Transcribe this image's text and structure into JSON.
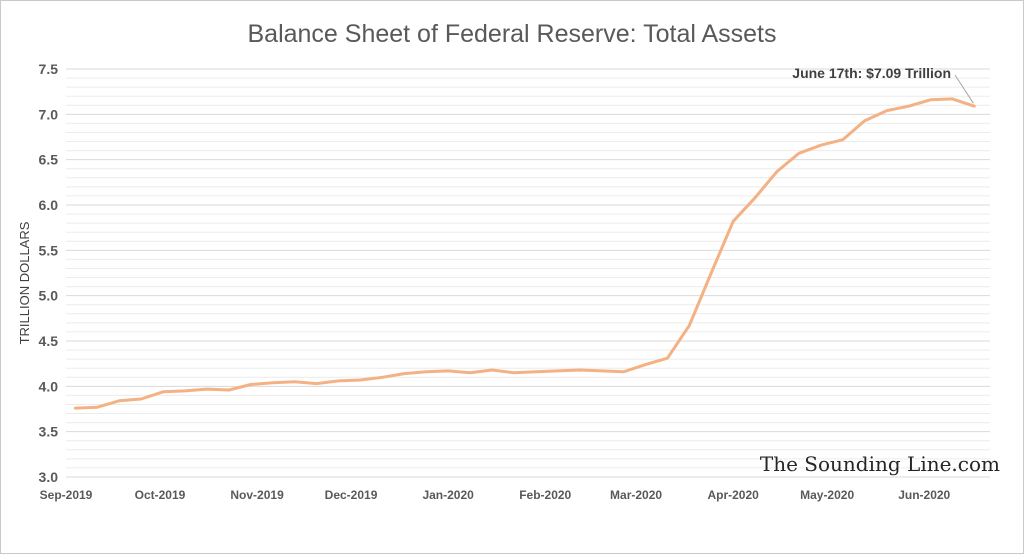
{
  "chart_data": {
    "type": "line",
    "title": "Balance Sheet of Federal Reserve: Total Assets",
    "xlabel": "",
    "ylabel": "TRILLION DOLLARS",
    "ylim": [
      3.0,
      7.5
    ],
    "yticks": [
      "3.0",
      "3.5",
      "4.0",
      "4.5",
      "5.0",
      "5.5",
      "6.0",
      "6.5",
      "7.0",
      "7.5"
    ],
    "xticks": [
      "Sep-2019",
      "Oct-2019",
      "Nov-2019",
      "Dec-2019",
      "Jan-2020",
      "Feb-2020",
      "Mar-2020",
      "Apr-2020",
      "May-2020",
      "Jun-2020"
    ],
    "grid": true,
    "color": "#f4b183",
    "series": [
      {
        "x": [
          "2019-09-04",
          "2019-09-11",
          "2019-09-18",
          "2019-09-25",
          "2019-10-02",
          "2019-10-09",
          "2019-10-16",
          "2019-10-23",
          "2019-10-30",
          "2019-11-06",
          "2019-11-13",
          "2019-11-20",
          "2019-11-27",
          "2019-12-04",
          "2019-12-11",
          "2019-12-18",
          "2019-12-25",
          "2020-01-01",
          "2020-01-08",
          "2020-01-15",
          "2020-01-22",
          "2020-01-29",
          "2020-02-05",
          "2020-02-12",
          "2020-02-19",
          "2020-02-26",
          "2020-03-04",
          "2020-03-11",
          "2020-03-18",
          "2020-03-25",
          "2020-04-01",
          "2020-04-08",
          "2020-04-15",
          "2020-04-22",
          "2020-04-29",
          "2020-05-06",
          "2020-05-13",
          "2020-05-20",
          "2020-05-27",
          "2020-06-03",
          "2020-06-10",
          "2020-06-17"
        ],
        "values": [
          3.76,
          3.77,
          3.84,
          3.86,
          3.94,
          3.95,
          3.97,
          3.96,
          4.02,
          4.04,
          4.05,
          4.03,
          4.06,
          4.07,
          4.1,
          4.14,
          4.16,
          4.17,
          4.15,
          4.18,
          4.15,
          4.16,
          4.17,
          4.18,
          4.17,
          4.16,
          4.24,
          4.31,
          4.67,
          5.25,
          5.82,
          6.08,
          6.37,
          6.57,
          6.66,
          6.72,
          6.93,
          7.04,
          7.09,
          7.16,
          7.17,
          7.09
        ]
      }
    ],
    "annotation": "June 17th: $7.09 Trillion",
    "watermark": "The Sounding Line.com"
  }
}
